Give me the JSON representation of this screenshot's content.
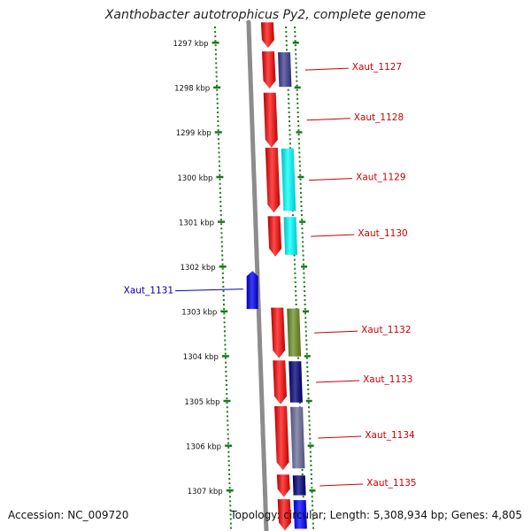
{
  "title": "Xanthobacter autotrophicus Py2, complete genome",
  "footer": {
    "accession": "Accession: NC_009720",
    "summary": "Topology: circular; Length: 5,308,934 bp; Genes: 4,805"
  },
  "scale": {
    "unit": "kbp",
    "ticks": [
      1297,
      1298,
      1299,
      1300,
      1301,
      1302,
      1303,
      1304,
      1305,
      1306,
      1307
    ],
    "tick_color": "#1a7a1a"
  },
  "backbone_color": "#8c8c8c",
  "genes": [
    {
      "label": "",
      "strand": "+",
      "start": 1296.55,
      "end": 1297.12,
      "color": "#ff0000",
      "color2": null,
      "label_color": "#cc0000"
    },
    {
      "label": "Xaut_1127",
      "strand": "+",
      "start": 1297.2,
      "end": 1298.03,
      "color": "#ff0000",
      "color2": "#3b3b8f",
      "label_color": "#cc0000"
    },
    {
      "label": "Xaut_1128",
      "strand": "+",
      "start": 1298.12,
      "end": 1299.35,
      "color": "#ff0000",
      "color2": null,
      "label_color": "#cc0000"
    },
    {
      "label": "Xaut_1129",
      "strand": "+",
      "start": 1299.35,
      "end": 1300.8,
      "color": "#ff0000",
      "color2": "#00ffff",
      "label_color": "#cc0000"
    },
    {
      "label": "Xaut_1130",
      "strand": "+",
      "start": 1300.88,
      "end": 1301.78,
      "color": "#ff0000",
      "color2": "#00ffff",
      "label_color": "#cc0000"
    },
    {
      "label": "Xaut_1131",
      "strand": "-",
      "start": 1302.1,
      "end": 1302.95,
      "color": "#0000ff",
      "color2": null,
      "label_color": "#0000aa"
    },
    {
      "label": "Xaut_1132",
      "strand": "+",
      "start": 1302.92,
      "end": 1304.05,
      "color": "#ff0000",
      "color2": "#6b8e23",
      "label_color": "#cc0000"
    },
    {
      "label": "Xaut_1133",
      "strand": "+",
      "start": 1304.1,
      "end": 1305.08,
      "color": "#ff0000",
      "color2": "#00007a",
      "label_color": "#cc0000"
    },
    {
      "label": "Xaut_1134",
      "strand": "+",
      "start": 1305.12,
      "end": 1306.55,
      "color": "#ff0000",
      "color2": "#6a6a9a",
      "label_color": "#cc0000"
    },
    {
      "label": "Xaut_1135",
      "strand": "+",
      "start": 1306.65,
      "end": 1307.15,
      "color": "#ff0000",
      "color2": "#00007a",
      "label_color": "#cc0000"
    },
    {
      "label": "",
      "strand": "+",
      "start": 1307.2,
      "end": 1307.9,
      "color": "#ff0000",
      "color2": "#0000ff",
      "label_color": "#cc0000"
    }
  ]
}
